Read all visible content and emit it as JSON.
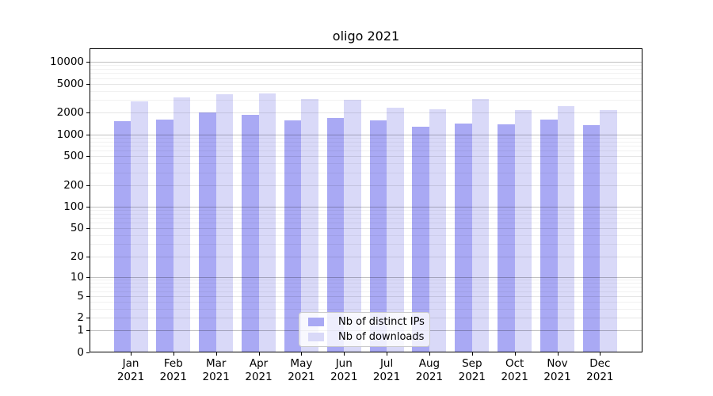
{
  "title": "oligo 2021",
  "chart_data": {
    "type": "bar",
    "title": "oligo 2021",
    "categories": [
      "Jan",
      "Feb",
      "Mar",
      "Apr",
      "May",
      "Jun",
      "Jul",
      "Aug",
      "Sep",
      "Oct",
      "Nov",
      "Dec"
    ],
    "year_suffix": "2021",
    "series": [
      {
        "name": "Nb of distinct IPs",
        "color": "#a9a9f4",
        "values": [
          1530,
          1600,
          2000,
          1870,
          1580,
          1700,
          1580,
          1290,
          1420,
          1380,
          1610,
          1340
        ]
      },
      {
        "name": "Nb of downloads",
        "color": "#d9d9f8",
        "values": [
          2840,
          3250,
          3560,
          3650,
          3060,
          2990,
          2360,
          2230,
          3090,
          2160,
          2460,
          2170
        ]
      }
    ],
    "y_scale": "log1p",
    "y_tick_labels": [
      "10000",
      "5000",
      "2000",
      "1000",
      "500",
      "200",
      "100",
      "50",
      "20",
      "10",
      "5",
      "2",
      "1",
      "0"
    ],
    "y_ticks": [
      10000,
      5000,
      2000,
      1000,
      500,
      200,
      100,
      50,
      20,
      10,
      5,
      2,
      1,
      0
    ],
    "ylim": [
      0,
      15400
    ],
    "grid": true,
    "legend_position": "bottom-center",
    "axis_color": "#000000"
  }
}
